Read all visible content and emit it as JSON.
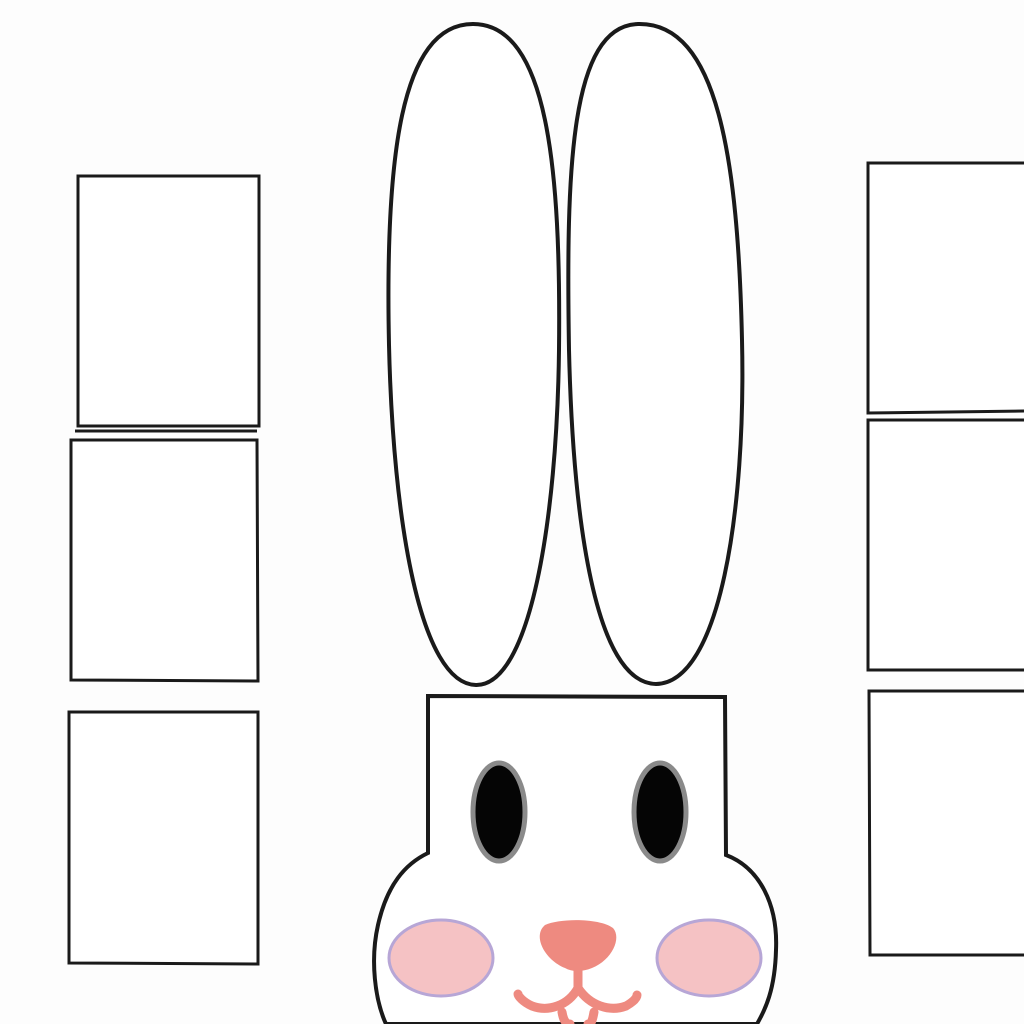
{
  "scene": {
    "subject": "bunny-face-template",
    "colors": {
      "background": "#fdfdfd",
      "outline": "#1a1a1a",
      "fill": "#ffffff",
      "eye": "#050505",
      "eye_rim": "#8a8a8a",
      "cheek": "#f5c2c4",
      "cheek_rim": "#b7a6d6",
      "nose": "#ee8a80",
      "mouth": "#ee8a80"
    },
    "left_boxes_count": 3,
    "right_boxes_count": 3,
    "icons": [
      "bunny-ear-icon",
      "bunny-head-icon"
    ]
  }
}
